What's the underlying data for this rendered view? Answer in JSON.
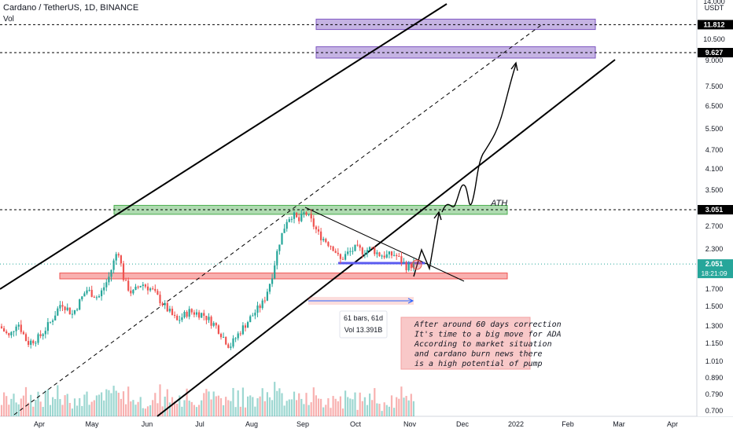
{
  "header": {
    "symbol_line": "Cardano / TetherUS, 1D, BINANCE",
    "vol_label": "Vol"
  },
  "chart_data": {
    "type": "candlestick",
    "scale": "log",
    "currency_label": "USDT",
    "y_ticks": [
      "14.000",
      "10.500",
      "9.000",
      "7.500",
      "6.500",
      "5.500",
      "4.700",
      "4.100",
      "3.500",
      "2.700",
      "2.300",
      "1.700",
      "1.500",
      "1.300",
      "1.150",
      "1.010",
      "0.890",
      "0.790",
      "0.700"
    ],
    "x_ticks": [
      "Apr",
      "May",
      "Jun",
      "Jul",
      "Aug",
      "Sep",
      "Oct",
      "Nov",
      "Dec",
      "2022",
      "Feb",
      "Mar",
      "Apr"
    ],
    "price_labels": [
      {
        "value": "11.812",
        "style": "dark"
      },
      {
        "value": "9.627",
        "style": "dark"
      },
      {
        "value": "3.051",
        "style": "dark"
      },
      {
        "value": "2.051",
        "style": "green"
      }
    ],
    "countdown": "18:21:09",
    "annotations": {
      "ath_label": "ATH",
      "range_bars": "61 bars, 61d",
      "range_vol": "Vol 13.391B",
      "note_lines": [
        "After around 60 days correction",
        "It's time to a big move for ADA",
        "According to market situation",
        "and cardano burn news there",
        "is a high potential of pump"
      ]
    },
    "zones": [
      {
        "name": "target-2",
        "low": 11.4,
        "high": 12.3,
        "color": "#7e57c2"
      },
      {
        "name": "target-1",
        "low": 9.25,
        "high": 10.05,
        "color": "#7e57c2"
      },
      {
        "name": "ath-zone",
        "low": 2.95,
        "high": 3.15,
        "color": "#4caf50"
      },
      {
        "name": "support-zone",
        "low": 1.84,
        "high": 1.92,
        "color": "#ef5350"
      }
    ],
    "colors": {
      "up": "#26a69a",
      "down": "#ef5350",
      "ath": "#4caf50",
      "target": "#7e57c2",
      "support": "#ef5350",
      "current": "#26a69a"
    }
  }
}
